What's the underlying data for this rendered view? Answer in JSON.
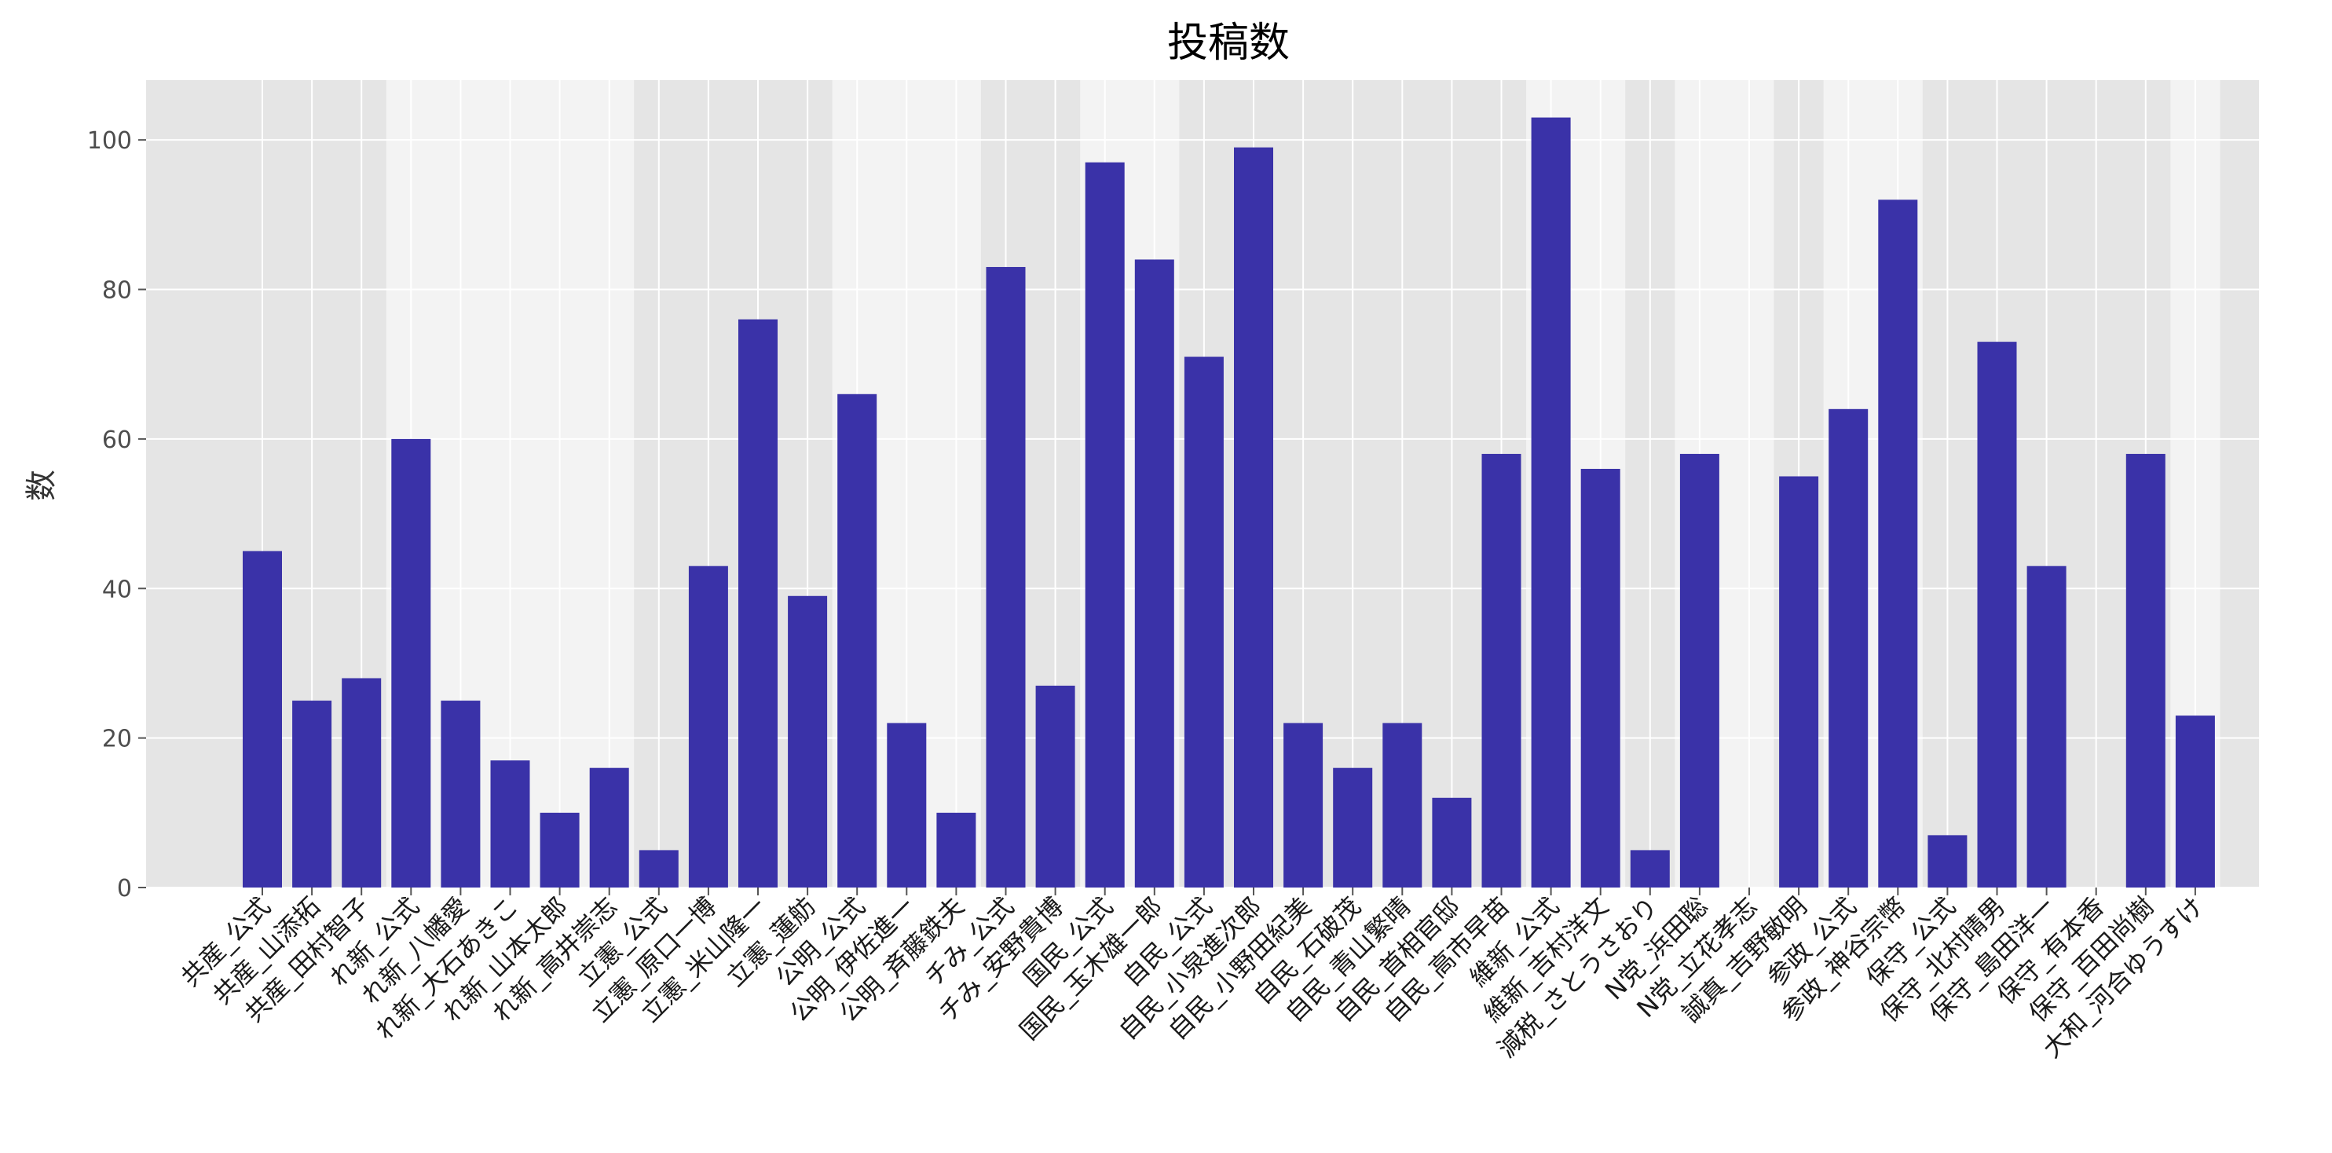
{
  "chart_data": {
    "type": "bar",
    "title": "投稿数",
    "xlabel": "",
    "ylabel": "数",
    "ylim": [
      0,
      108
    ],
    "yticks": [
      0,
      20,
      40,
      60,
      80,
      100
    ],
    "grid": true,
    "bar_color": "#3a32a8",
    "background_color": "#e5e5e5",
    "band_color": "#f3f3f3",
    "grid_color": "#ffffff",
    "categories": [
      "共産_公式",
      "共産_山添拓",
      "共産_田村智子",
      "れ新_公式",
      "れ新_八幡愛",
      "れ新_大石あきこ",
      "れ新_山本太郎",
      "れ新_高井崇志",
      "立憲_公式",
      "立憲_原口一博",
      "立憲_米山隆一",
      "立憲_蓮舫",
      "公明_公式",
      "公明_伊佐進一",
      "公明_斉藤鉄夫",
      "チみ_公式",
      "チみ_安野貴博",
      "国民_公式",
      "国民_玉木雄一郎",
      "自民_公式",
      "自民_小泉進次郎",
      "自民_小野田紀美",
      "自民_石破茂",
      "自民_青山繁晴",
      "自民_首相官邸",
      "自民_高市早苗",
      "維新_公式",
      "維新_吉村洋文",
      "減税_さとうさおり",
      "N党_浜田聡",
      "N党_立花孝志",
      "誠真_吉野敏明",
      "参政_公式",
      "参政_神谷宗幣",
      "保守_公式",
      "保守_北村晴男",
      "保守_島田洋一",
      "保守_有本香",
      "保守_百田尚樹",
      "大和_河合ゆうすけ"
    ],
    "values": [
      45,
      25,
      28,
      60,
      25,
      17,
      10,
      16,
      5,
      43,
      76,
      39,
      66,
      22,
      10,
      83,
      27,
      97,
      84,
      71,
      99,
      22,
      16,
      22,
      12,
      58,
      103,
      56,
      5,
      58,
      0,
      55,
      64,
      92,
      7,
      73,
      43,
      0,
      58,
      23
    ],
    "party_bands": [
      {
        "start": 0,
        "end": 2,
        "shade": "dark"
      },
      {
        "start": 3,
        "end": 7,
        "shade": "light"
      },
      {
        "start": 8,
        "end": 11,
        "shade": "dark"
      },
      {
        "start": 12,
        "end": 14,
        "shade": "light"
      },
      {
        "start": 15,
        "end": 16,
        "shade": "dark"
      },
      {
        "start": 17,
        "end": 18,
        "shade": "light"
      },
      {
        "start": 19,
        "end": 25,
        "shade": "dark"
      },
      {
        "start": 26,
        "end": 27,
        "shade": "light"
      },
      {
        "start": 28,
        "end": 28,
        "shade": "dark"
      },
      {
        "start": 29,
        "end": 30,
        "shade": "light"
      },
      {
        "start": 31,
        "end": 31,
        "shade": "dark"
      },
      {
        "start": 32,
        "end": 33,
        "shade": "light"
      },
      {
        "start": 34,
        "end": 38,
        "shade": "dark"
      },
      {
        "start": 39,
        "end": 39,
        "shade": "light"
      }
    ]
  }
}
